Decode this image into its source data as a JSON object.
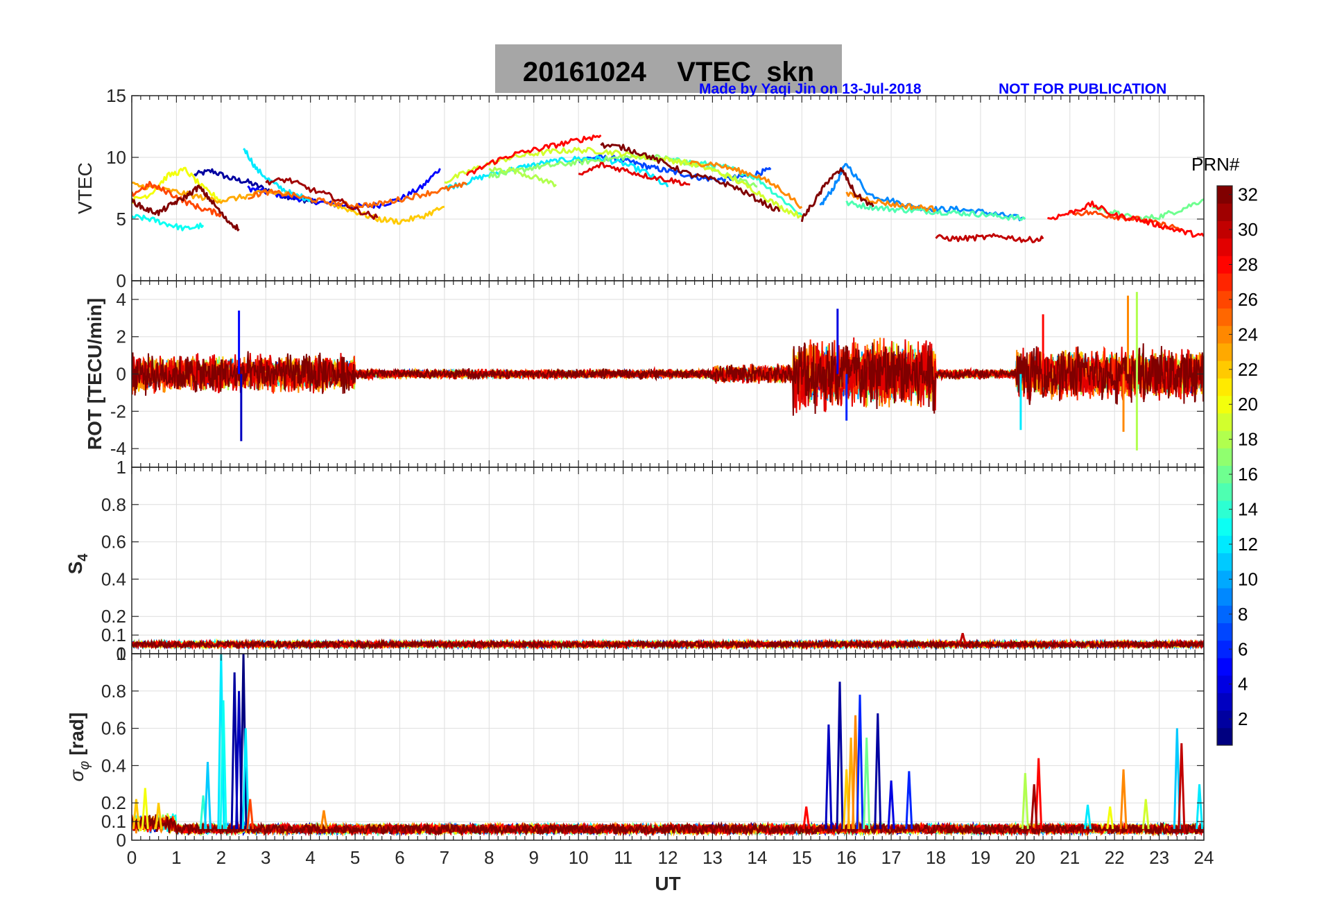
{
  "title": "20161024    VTEC  skn",
  "credit": "Made by Yaqi Jin on 13-Jul-2018",
  "notice": "NOT FOR PUBLICATION",
  "colorbar": {
    "label": "PRN#",
    "ticks": [
      2,
      4,
      6,
      8,
      10,
      12,
      14,
      16,
      18,
      20,
      22,
      24,
      26,
      28,
      30,
      32
    ],
    "range": [
      1,
      32
    ],
    "colormap": "jet"
  },
  "chart_data": [
    {
      "type": "line",
      "ylabel": "VTEC",
      "ylim": [
        0,
        15
      ],
      "yticks": [
        0,
        5,
        10,
        15
      ],
      "xlim": [
        0,
        24
      ],
      "grid": true,
      "description_series": [
        {
          "prn": 2,
          "x": [
            1.4,
            1.8,
            2.2,
            2.6,
            3.0,
            3.4,
            3.8,
            4.2
          ],
          "y": [
            8.6,
            8.9,
            8.3,
            8.0,
            7.4,
            6.9,
            6.6,
            6.3
          ]
        },
        {
          "prn": 5,
          "x": [
            2.6,
            3.0,
            3.5,
            4.0,
            4.5,
            5.0,
            5.5,
            6.0,
            6.5,
            6.9
          ],
          "y": [
            7.5,
            7.2,
            6.8,
            6.5,
            6.2,
            6.0,
            6.1,
            6.6,
            7.6,
            9.1
          ]
        },
        {
          "prn": 7,
          "x": [
            10.0,
            10.4,
            10.8,
            11.2,
            11.6,
            12.0,
            12.4,
            12.8,
            13.2,
            13.6,
            14.0,
            14.3
          ],
          "y": [
            9.8,
            10.0,
            9.9,
            9.6,
            9.2,
            8.9,
            8.6,
            8.3,
            8.2,
            8.4,
            8.7,
            9.0
          ]
        },
        {
          "prn": 9,
          "x": [
            15.4,
            15.7,
            16.0,
            16.5,
            17.0,
            17.5,
            18.0,
            18.5,
            19.0,
            19.5,
            20.0
          ],
          "y": [
            6.0,
            7.5,
            9.5,
            7.0,
            6.5,
            6.0,
            5.8,
            5.8,
            5.6,
            5.3,
            5.0
          ]
        },
        {
          "prn": 12,
          "x": [
            2.5,
            2.8,
            3.2,
            3.6,
            4.0
          ],
          "y": [
            10.8,
            9.0,
            7.8,
            7.0,
            6.6
          ]
        },
        {
          "prn": 12,
          "x": [
            7.0,
            7.5,
            8.0,
            8.5,
            9.0,
            9.5,
            10.0,
            10.5,
            11.0,
            11.5,
            12.0
          ],
          "y": [
            7.5,
            8.0,
            8.6,
            9.0,
            9.4,
            9.7,
            9.9,
            9.9,
            9.5,
            8.8,
            7.6
          ]
        },
        {
          "prn": 13,
          "x": [
            0.0,
            0.4,
            0.8,
            1.2,
            1.6
          ],
          "y": [
            5.2,
            5.0,
            4.6,
            4.2,
            4.5
          ]
        },
        {
          "prn": 14,
          "x": [
            12.0,
            12.5,
            13.0,
            13.5,
            14.0,
            14.5,
            15.0
          ],
          "y": [
            9.8,
            9.6,
            9.4,
            9.0,
            8.3,
            6.8,
            5.3
          ]
        },
        {
          "prn": 15,
          "x": [
            16.0,
            16.5,
            17.0,
            17.5,
            18.0,
            18.5,
            19.0,
            19.5,
            20.0
          ],
          "y": [
            6.3,
            6.0,
            5.8,
            5.7,
            5.6,
            5.5,
            5.4,
            5.2,
            5.0
          ]
        },
        {
          "prn": 16,
          "x": [
            21.5,
            22.0,
            22.5,
            23.0,
            23.5,
            24.0
          ],
          "y": [
            6.0,
            5.5,
            5.0,
            5.2,
            5.8,
            6.6
          ]
        },
        {
          "prn": 17,
          "x": [
            8.0,
            8.5,
            9.0,
            9.5,
            10.0,
            10.5,
            11.0,
            11.5,
            12.0,
            12.5,
            13.0,
            13.5,
            14.0
          ],
          "y": [
            8.5,
            8.8,
            9.2,
            9.4,
            9.6,
            9.8,
            10.0,
            10.1,
            9.9,
            9.5,
            9.0,
            8.3,
            7.6
          ]
        },
        {
          "prn": 18,
          "x": [
            8.0,
            8.5,
            9.0,
            9.5
          ],
          "y": [
            9.0,
            9.0,
            8.4,
            7.8
          ]
        },
        {
          "prn": 19,
          "x": [
            7.0,
            7.5,
            8.0,
            8.5,
            9.0,
            9.5,
            10.0,
            10.5,
            11.0,
            11.5,
            12.0,
            12.5,
            13.0,
            13.5,
            14.0,
            14.5,
            15.0
          ],
          "y": [
            8.0,
            8.8,
            9.5,
            10.0,
            10.3,
            10.5,
            10.6,
            10.5,
            10.3,
            10.0,
            9.8,
            9.5,
            9.0,
            8.2,
            7.2,
            6.0,
            5.2
          ]
        },
        {
          "prn": 20,
          "x": [
            0.0,
            0.4,
            0.8,
            1.2,
            1.6,
            2.0
          ],
          "y": [
            6.5,
            7.0,
            8.5,
            9.0,
            7.5,
            6.5
          ]
        },
        {
          "prn": 22,
          "x": [
            4.5,
            5.0,
            5.5,
            6.0,
            6.5,
            7.0
          ],
          "y": [
            6.2,
            5.6,
            5.0,
            4.8,
            5.2,
            6.0
          ]
        },
        {
          "prn": 23,
          "x": [
            0.0,
            0.5,
            1.0,
            1.5,
            2.0,
            2.5,
            3.0,
            3.5
          ],
          "y": [
            7.8,
            7.5,
            7.2,
            6.8,
            6.5,
            6.8,
            7.2,
            7.0
          ]
        },
        {
          "prn": 24,
          "x": [
            12.5,
            13.0,
            13.5,
            14.0,
            14.5,
            15.0
          ],
          "y": [
            9.5,
            9.5,
            9.0,
            8.5,
            7.5,
            6.0
          ]
        },
        {
          "prn": 24,
          "x": [
            16.0,
            16.5,
            17.0,
            17.5,
            18.0
          ],
          "y": [
            7.0,
            6.6,
            6.2,
            6.0,
            5.8
          ]
        },
        {
          "prn": 25,
          "x": [
            2.6,
            3.0,
            3.5,
            4.0,
            4.5,
            5.0,
            5.5,
            6.0,
            6.5,
            7.0,
            7.5
          ],
          "y": [
            6.8,
            7.2,
            7.0,
            6.6,
            6.3,
            6.1,
            6.2,
            6.6,
            7.0,
            7.4,
            7.8
          ]
        },
        {
          "prn": 26,
          "x": [
            0.0,
            0.4,
            0.8,
            1.2,
            1.6,
            2.0
          ],
          "y": [
            7.0,
            7.8,
            7.2,
            6.4,
            5.8,
            5.4
          ]
        },
        {
          "prn": 26,
          "x": [
            21.0,
            21.5,
            22.0,
            22.5,
            23.0,
            23.5
          ],
          "y": [
            5.5,
            5.5,
            5.2,
            5.0,
            4.6,
            4.2
          ]
        },
        {
          "prn": 28,
          "x": [
            7.5,
            8.0,
            8.5,
            9.0,
            9.5,
            10.0,
            10.5
          ],
          "y": [
            8.5,
            9.5,
            10.2,
            10.6,
            11.0,
            11.4,
            11.8
          ]
        },
        {
          "prn": 28,
          "x": [
            20.5,
            21.0,
            21.5,
            22.0,
            22.5,
            23.0,
            23.5,
            24.0
          ],
          "y": [
            5.0,
            5.5,
            6.2,
            5.3,
            5.0,
            4.5,
            4.0,
            3.6
          ]
        },
        {
          "prn": 29,
          "x": [
            10.0,
            10.5,
            11.0,
            11.5,
            12.0,
            12.5
          ],
          "y": [
            8.5,
            9.4,
            9.0,
            8.5,
            8.2,
            7.8
          ]
        },
        {
          "prn": 30,
          "x": [
            18.0,
            18.5,
            19.0,
            19.5,
            20.0,
            20.4
          ],
          "y": [
            3.5,
            3.4,
            3.5,
            3.6,
            3.3,
            3.4
          ]
        },
        {
          "prn": 31,
          "x": [
            3.0,
            3.5,
            4.0,
            4.5,
            5.0,
            5.5
          ],
          "y": [
            8.0,
            8.2,
            7.4,
            6.8,
            5.8,
            5.1
          ]
        },
        {
          "prn": 32,
          "x": [
            0.0,
            0.3,
            0.6,
            0.9,
            1.2,
            1.5,
            1.8,
            2.1,
            2.4
          ],
          "y": [
            6.5,
            5.8,
            5.5,
            6.2,
            6.8,
            7.6,
            6.4,
            5.0,
            4.2
          ]
        },
        {
          "prn": 32,
          "x": [
            10.5,
            11.0,
            11.5,
            12.0,
            12.5,
            13.0,
            13.5,
            14.0,
            14.5
          ],
          "y": [
            11.0,
            10.8,
            10.2,
            9.4,
            8.6,
            8.2,
            7.6,
            6.6,
            5.6
          ]
        },
        {
          "prn": 32,
          "x": [
            15.0,
            15.3,
            15.6,
            15.9,
            16.2,
            16.6
          ],
          "y": [
            5.0,
            6.5,
            8.2,
            9.0,
            7.0,
            6.0
          ]
        }
      ]
    },
    {
      "type": "line",
      "ylabel": "ROT [TECU/min]",
      "ylim": [
        -5,
        5
      ],
      "yticks": [
        -4,
        -2,
        0,
        2,
        4
      ],
      "xlim": [
        0,
        24
      ],
      "grid": true,
      "activity": [
        {
          "x": [
            0.0,
            5.0
          ],
          "amp": 1.2
        },
        {
          "x": [
            5.0,
            13.0
          ],
          "amp": 0.3
        },
        {
          "x": [
            13.0,
            14.8
          ],
          "amp": 0.6
        },
        {
          "x": [
            14.8,
            18.0
          ],
          "amp": 2.2
        },
        {
          "x": [
            18.0,
            19.8
          ],
          "amp": 0.3
        },
        {
          "x": [
            19.8,
            24.0
          ],
          "amp": 1.6
        }
      ],
      "spikes": [
        {
          "x": 2.4,
          "y": 3.4
        },
        {
          "x": 2.45,
          "y": -3.6
        },
        {
          "x": 15.8,
          "y": 3.5
        },
        {
          "x": 16.0,
          "y": -2.5
        },
        {
          "x": 20.4,
          "y": 3.2
        },
        {
          "x": 22.3,
          "y": 4.2
        },
        {
          "x": 22.5,
          "y": 4.4
        },
        {
          "x": 22.5,
          "y": -4.1
        },
        {
          "x": 19.9,
          "y": -3.0
        },
        {
          "x": 22.2,
          "y": -3.1
        }
      ]
    },
    {
      "type": "line",
      "ylabel": "S4",
      "ylim": [
        0,
        1
      ],
      "yticks": [
        0,
        0.1,
        0.2,
        0.4,
        0.6,
        0.8,
        1
      ],
      "xlim": [
        0,
        24
      ],
      "grid": true,
      "baseline": 0.05,
      "spikes": [
        {
          "x": 18.6,
          "y": 0.11
        }
      ]
    },
    {
      "type": "line",
      "ylabel": "σ_φ [rad]",
      "ylim": [
        0,
        1
      ],
      "yticks": [
        0,
        0.1,
        0.2,
        0.4,
        0.6,
        0.8,
        1
      ],
      "xlim": [
        0,
        24
      ],
      "xticks": [
        0,
        1,
        2,
        3,
        4,
        5,
        6,
        7,
        8,
        9,
        10,
        11,
        12,
        13,
        14,
        15,
        16,
        17,
        18,
        19,
        20,
        21,
        22,
        23,
        24
      ],
      "xlabel": "UT",
      "grid": true,
      "baseline": 0.06,
      "spikes": [
        {
          "x": 0.1,
          "prn": 22,
          "y": 0.22
        },
        {
          "x": 0.3,
          "prn": 20,
          "y": 0.28
        },
        {
          "x": 0.6,
          "prn": 22,
          "y": 0.2
        },
        {
          "x": 1.6,
          "prn": 14,
          "y": 0.24
        },
        {
          "x": 1.7,
          "prn": 11,
          "y": 0.42
        },
        {
          "x": 2.0,
          "prn": 12,
          "y": 1.0
        },
        {
          "x": 2.05,
          "prn": 13,
          "y": 0.75
        },
        {
          "x": 2.3,
          "prn": 2,
          "y": 0.9
        },
        {
          "x": 2.4,
          "prn": 3,
          "y": 0.8
        },
        {
          "x": 2.5,
          "prn": 1,
          "y": 1.0
        },
        {
          "x": 2.55,
          "prn": 12,
          "y": 0.6
        },
        {
          "x": 2.65,
          "prn": 26,
          "y": 0.22
        },
        {
          "x": 4.3,
          "prn": 24,
          "y": 0.16
        },
        {
          "x": 15.1,
          "prn": 28,
          "y": 0.18
        },
        {
          "x": 15.6,
          "prn": 3,
          "y": 0.62
        },
        {
          "x": 15.85,
          "prn": 2,
          "y": 0.85
        },
        {
          "x": 16.0,
          "prn": 22,
          "y": 0.38
        },
        {
          "x": 16.1,
          "prn": 23,
          "y": 0.55
        },
        {
          "x": 16.2,
          "prn": 24,
          "y": 0.67
        },
        {
          "x": 16.3,
          "prn": 6,
          "y": 0.78
        },
        {
          "x": 16.45,
          "prn": 16,
          "y": 0.55
        },
        {
          "x": 16.7,
          "prn": 2,
          "y": 0.68
        },
        {
          "x": 17.0,
          "prn": 4,
          "y": 0.32
        },
        {
          "x": 17.4,
          "prn": 6,
          "y": 0.37
        },
        {
          "x": 20.0,
          "prn": 18,
          "y": 0.36
        },
        {
          "x": 20.3,
          "prn": 28,
          "y": 0.44
        },
        {
          "x": 20.2,
          "prn": 31,
          "y": 0.3
        },
        {
          "x": 21.4,
          "prn": 12,
          "y": 0.19
        },
        {
          "x": 21.9,
          "prn": 20,
          "y": 0.18
        },
        {
          "x": 22.2,
          "prn": 24,
          "y": 0.38
        },
        {
          "x": 22.7,
          "prn": 19,
          "y": 0.22
        },
        {
          "x": 23.4,
          "prn": 11,
          "y": 0.6
        },
        {
          "x": 23.5,
          "prn": 30,
          "y": 0.52
        },
        {
          "x": 23.9,
          "prn": 12,
          "y": 0.3
        }
      ]
    }
  ]
}
